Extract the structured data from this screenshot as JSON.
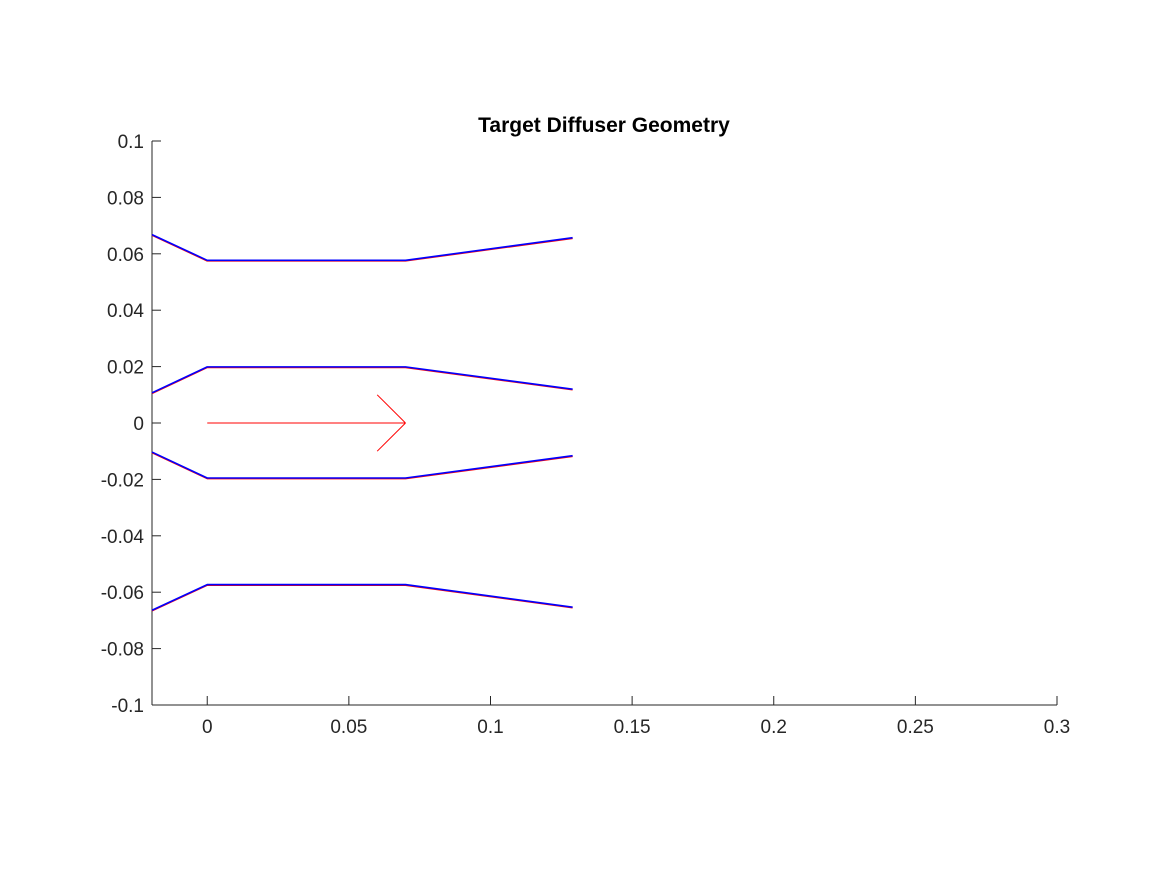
{
  "chart_data": {
    "type": "line",
    "title": "Target Diffuser Geometry",
    "xlabel": "",
    "ylabel": "",
    "xlim": [
      -0.0195,
      0.3
    ],
    "ylim": [
      -0.1,
      0.1
    ],
    "x_ticks": [
      0,
      0.05,
      0.1,
      0.15,
      0.2,
      0.25,
      0.3
    ],
    "x_tick_labels": [
      "0",
      "0.05",
      "0.1",
      "0.15",
      "0.2",
      "0.25",
      "0.3"
    ],
    "y_ticks": [
      0.1,
      0.08,
      0.06,
      0.04,
      0.02,
      0,
      -0.02,
      -0.04,
      -0.06,
      -0.08,
      -0.1
    ],
    "y_tick_labels": [
      "0.1",
      "0.08",
      "0.06",
      "0.04",
      "0.02",
      "0",
      "-0.02",
      "-0.04",
      "-0.06",
      "-0.08",
      "-0.1"
    ],
    "grid": false,
    "series": [
      {
        "name": "target-outer-wall-top",
        "color": "#ff0000",
        "x": [
          -0.0195,
          0,
          0.07,
          0.129
        ],
        "y": [
          0.0666,
          0.0575,
          0.0575,
          0.0655
        ]
      },
      {
        "name": "target-inner-wall-top",
        "color": "#ff0000",
        "x": [
          -0.0195,
          0,
          0.07,
          0.129
        ],
        "y": [
          0.0105,
          0.0197,
          0.0197,
          0.0118
        ]
      },
      {
        "name": "target-inner-wall-bottom",
        "color": "#ff0000",
        "x": [
          -0.0195,
          0,
          0.07,
          0.129
        ],
        "y": [
          -0.0105,
          -0.0197,
          -0.0197,
          -0.0118
        ]
      },
      {
        "name": "target-outer-wall-bottom",
        "color": "#ff0000",
        "x": [
          -0.0195,
          0,
          0.07,
          0.129
        ],
        "y": [
          -0.0666,
          -0.0575,
          -0.0575,
          -0.0655
        ]
      },
      {
        "name": "outer-wall-top",
        "color": "#0000ff",
        "x": [
          -0.0195,
          0,
          0.07,
          0.129
        ],
        "y": [
          0.0668,
          0.0577,
          0.0577,
          0.0657
        ]
      },
      {
        "name": "inner-wall-top",
        "color": "#0000ff",
        "x": [
          -0.0195,
          0,
          0.07,
          0.129
        ],
        "y": [
          0.0107,
          0.0199,
          0.0199,
          0.012
        ]
      },
      {
        "name": "inner-wall-bottom",
        "color": "#0000ff",
        "x": [
          -0.0195,
          0,
          0.07,
          0.129
        ],
        "y": [
          -0.0103,
          -0.0195,
          -0.0195,
          -0.0116
        ]
      },
      {
        "name": "outer-wall-bottom",
        "color": "#0000ff",
        "x": [
          -0.0195,
          0,
          0.07,
          0.129
        ],
        "y": [
          -0.0664,
          -0.0573,
          -0.0573,
          -0.0653
        ]
      }
    ],
    "annotations": [
      {
        "type": "arrow",
        "name": "flow-direction-arrow",
        "color": "#ff0000",
        "x_start": 0,
        "x_end": 0.07,
        "y": 0,
        "head_dx": 0.01,
        "head_dy": 0.01
      }
    ]
  }
}
